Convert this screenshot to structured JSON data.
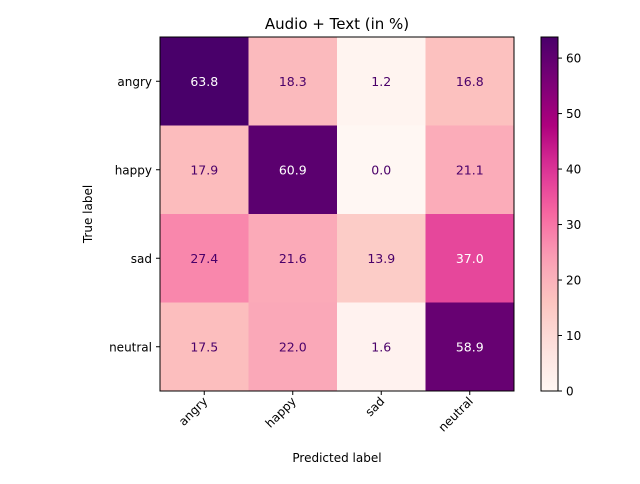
{
  "chart_data": {
    "type": "heatmap",
    "title": "Audio + Text (in %)",
    "xlabel": "Predicted label",
    "ylabel": "True label",
    "x_categories": [
      "angry",
      "happy",
      "sad",
      "neutral"
    ],
    "y_categories": [
      "angry",
      "happy",
      "sad",
      "neutral"
    ],
    "values": [
      [
        63.8,
        18.3,
        1.2,
        16.8
      ],
      [
        17.9,
        60.9,
        0.0,
        21.1
      ],
      [
        27.4,
        21.6,
        13.9,
        37.0
      ],
      [
        17.5,
        22.0,
        1.6,
        58.9
      ]
    ],
    "colormap": "RdPu",
    "color_range": [
      0,
      63.8
    ],
    "colorbar_ticks": [
      0,
      10,
      20,
      30,
      40,
      50,
      60
    ],
    "grid": false
  }
}
